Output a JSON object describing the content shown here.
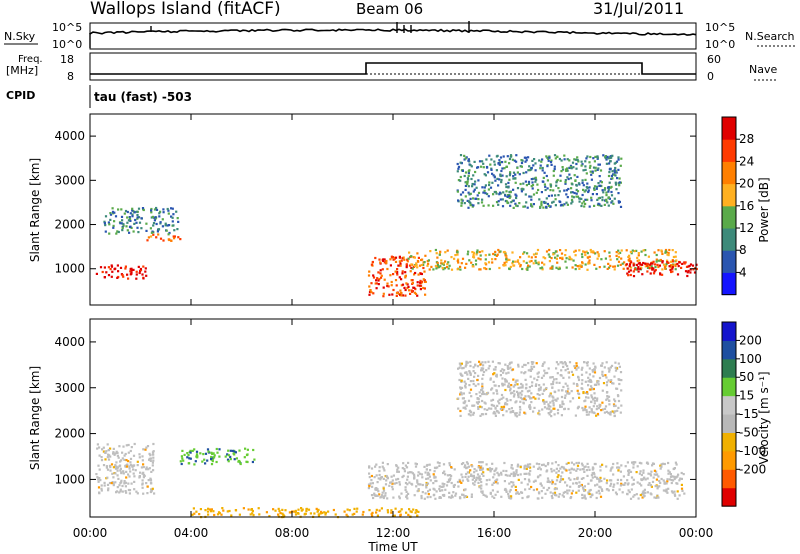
{
  "header": {
    "station": "Wallops Island (fitACF)",
    "beam": "Beam 06",
    "date": "31/Jul/2011"
  },
  "noise_panel": {
    "left_label": "N.Sky",
    "left_ticks": [
      "10^5",
      "10^0"
    ],
    "right_ticks": [
      "10^5",
      "10^0"
    ],
    "right_label": "N.Search"
  },
  "freq_panel": {
    "left_label_1": "Freq.",
    "left_label_2": "[MHz]",
    "left_ticks": [
      "18",
      "8"
    ],
    "right_ticks": [
      "60",
      "0"
    ],
    "right_label": "Nave"
  },
  "cpid": {
    "label": "CPID",
    "value": "tau (fast) -503"
  },
  "colors": {
    "power_scale": [
      "#1414ff",
      "#2a55b0",
      "#3d8a7a",
      "#5aaa4a",
      "#ffb020",
      "#ff7f00",
      "#ff3a00",
      "#e00000"
    ],
    "velocity_scale": [
      "#e00000",
      "#ff5a00",
      "#ff9a00",
      "#f0b000",
      "#b8b8b8",
      "#c8c8c8",
      "#66cc33",
      "#2e7d50",
      "#1e4fa0",
      "#1414cc"
    ],
    "ground_scatter": "#bebebe"
  },
  "chart_data": [
    {
      "type": "heatmap",
      "name": "power",
      "xlabel": "",
      "ylabel": "Slant Range [km]",
      "x_ticks": [
        "00:00",
        "04:00",
        "08:00",
        "12:00",
        "16:00",
        "20:00",
        "00:00"
      ],
      "y_ticks": [
        "1000",
        "2000",
        "3000",
        "4000"
      ],
      "ylim": [
        180,
        4500
      ],
      "xlim": [
        0,
        24
      ],
      "colorbar_label": "Power [dB]",
      "colorbar_ticks": [
        "4",
        "8",
        "12",
        "16",
        "20",
        "24",
        "28"
      ],
      "regions": [
        {
          "x": [
            0.2,
            2.2
          ],
          "y": [
            800,
            1100
          ],
          "level": 7
        },
        {
          "x": [
            2.2,
            3.6
          ],
          "y": [
            1600,
            1800
          ],
          "level": 5
        },
        {
          "x": [
            11.0,
            13.3
          ],
          "y": [
            400,
            1300
          ],
          "level": 6
        },
        {
          "x": [
            12.5,
            23.2
          ],
          "y": [
            1000,
            1450
          ],
          "level": 4
        },
        {
          "x": [
            21.2,
            24.0
          ],
          "y": [
            850,
            1200
          ],
          "level": 7
        },
        {
          "x": [
            14.5,
            21.0
          ],
          "y": [
            2400,
            3600
          ],
          "level": 2
        },
        {
          "x": [
            0.5,
            3.5
          ],
          "y": [
            1800,
            2400
          ],
          "level": 2
        }
      ]
    },
    {
      "type": "heatmap",
      "name": "velocity",
      "xlabel": "Time UT",
      "ylabel": "Slant Range [km]",
      "x_ticks": [
        "00:00",
        "04:00",
        "08:00",
        "12:00",
        "16:00",
        "20:00",
        "00:00"
      ],
      "y_ticks": [
        "1000",
        "2000",
        "3000",
        "4000"
      ],
      "ylim": [
        180,
        4500
      ],
      "xlim": [
        0,
        24
      ],
      "colorbar_label": "Velocity [m s⁻¹]",
      "colorbar_ticks": [
        "200",
        "100",
        "50",
        "15",
        "-15",
        "-50",
        "-100",
        "-200"
      ],
      "regions": [
        {
          "x": [
            3.5,
            6.5
          ],
          "y": [
            1350,
            1700
          ],
          "value": 50
        },
        {
          "x": [
            0.2,
            2.5
          ],
          "y": [
            700,
            1800
          ],
          "value": -15
        },
        {
          "x": [
            11.0,
            23.5
          ],
          "y": [
            600,
            1400
          ],
          "value": -15
        },
        {
          "x": [
            4.0,
            13.0
          ],
          "y": [
            200,
            400
          ],
          "value": -50
        },
        {
          "x": [
            14.5,
            21.0
          ],
          "y": [
            2400,
            3600
          ],
          "value": -15
        }
      ]
    }
  ]
}
